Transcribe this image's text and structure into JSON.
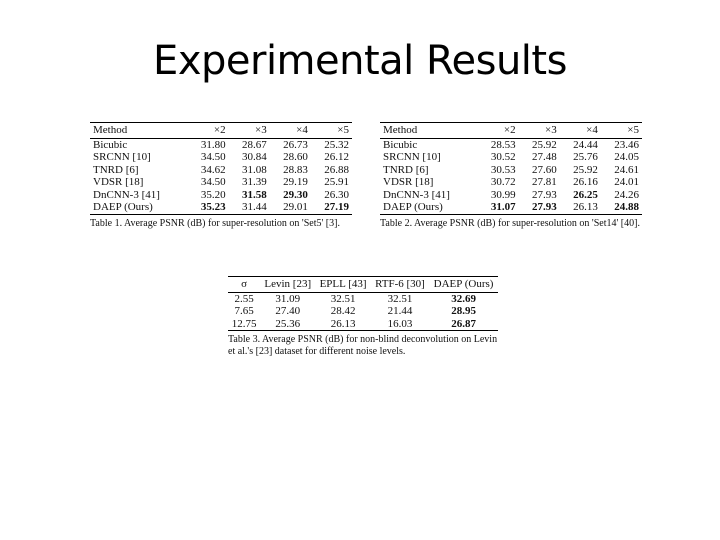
{
  "title": "Experimental Results",
  "tables": [
    {
      "header": [
        "Method",
        "×2",
        "×3",
        "×4",
        "×5"
      ],
      "rows": [
        [
          "Bicubic",
          "31.80",
          "28.67",
          "26.73",
          "25.32"
        ],
        [
          "SRCNN [10]",
          "34.50",
          "30.84",
          "28.60",
          "26.12"
        ],
        [
          "TNRD [6]",
          "34.62",
          "31.08",
          "28.83",
          "26.88"
        ],
        [
          "VDSR [18]",
          "34.50",
          "31.39",
          "29.19",
          "25.91"
        ],
        [
          "DnCNN-3 [41]",
          "35.20",
          "31.58",
          "29.30",
          "26.30"
        ],
        [
          "DAEP (Ours)",
          "35.23",
          "31.44",
          "29.01",
          "27.19"
        ]
      ],
      "bold": [
        [
          5,
          1
        ],
        [
          4,
          2
        ],
        [
          4,
          3
        ],
        [
          5,
          4
        ]
      ],
      "caption": "Table 1. Average PSNR (dB) for super-resolution on 'Set5' [3]."
    },
    {
      "header": [
        "Method",
        "×2",
        "×3",
        "×4",
        "×5"
      ],
      "rows": [
        [
          "Bicubic",
          "28.53",
          "25.92",
          "24.44",
          "23.46"
        ],
        [
          "SRCNN [10]",
          "30.52",
          "27.48",
          "25.76",
          "24.05"
        ],
        [
          "TNRD [6]",
          "30.53",
          "27.60",
          "25.92",
          "24.61"
        ],
        [
          "VDSR [18]",
          "30.72",
          "27.81",
          "26.16",
          "24.01"
        ],
        [
          "DnCNN-3 [41]",
          "30.99",
          "27.93",
          "26.25",
          "24.26"
        ],
        [
          "DAEP (Ours)",
          "31.07",
          "27.93",
          "26.13",
          "24.88"
        ]
      ],
      "bold": [
        [
          5,
          1
        ],
        [
          5,
          2
        ],
        [
          4,
          3
        ],
        [
          5,
          4
        ]
      ],
      "caption": "Table 2. Average PSNR (dB) for super-resolution on 'Set14' [40]."
    },
    {
      "header": [
        "σ",
        "Levin [23]",
        "EPLL [43]",
        "RTF-6 [30]",
        "DAEP (Ours)"
      ],
      "rows": [
        [
          "2.55",
          "31.09",
          "32.51",
          "32.51",
          "32.69"
        ],
        [
          "7.65",
          "27.40",
          "28.42",
          "21.44",
          "28.95"
        ],
        [
          "12.75",
          "25.36",
          "26.13",
          "16.03",
          "26.87"
        ]
      ],
      "bold": [
        [
          0,
          4
        ],
        [
          1,
          4
        ],
        [
          2,
          4
        ]
      ],
      "caption": "Table 3. Average PSNR (dB) for non-blind deconvolution on Levin et al.'s [23] dataset for different noise levels."
    }
  ]
}
